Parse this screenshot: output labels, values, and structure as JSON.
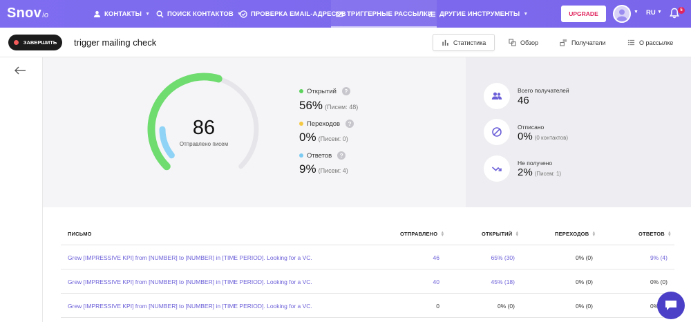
{
  "brand": {
    "name": "Snov",
    "suffix": "io"
  },
  "nav": {
    "items": [
      {
        "label": "КОНТАКТЫ",
        "icon": "user-icon",
        "has_menu": true
      },
      {
        "label": "ПОИСК КОНТАКТОВ",
        "icon": "search-icon",
        "has_menu": true
      },
      {
        "label": "ПРОВЕРКА EMAIL-АДРЕСОВ",
        "icon": "check-circle-icon",
        "has_menu": false
      },
      {
        "label": "ТРИГГЕРНЫЕ РАССЫЛКИ",
        "icon": "mail-icon",
        "has_menu": false,
        "active": true
      },
      {
        "label": "ДРУГИЕ ИНСТРУМЕНТЫ",
        "icon": "menu-icon",
        "has_menu": true
      }
    ],
    "upgrade_label": "UPGRADE",
    "language": "RU",
    "notification_count": "5"
  },
  "campaign": {
    "finish_label": "ЗАВЕРШИТЬ",
    "title": "trigger mailing check",
    "tabs": [
      {
        "label": "Статистика",
        "icon": "bar-chart-icon",
        "active": true
      },
      {
        "label": "Обзор",
        "icon": "overview-icon"
      },
      {
        "label": "Получатели",
        "icon": "recipients-icon"
      },
      {
        "label": "О рассылке",
        "icon": "list-icon"
      }
    ]
  },
  "stats": {
    "sent_count": "86",
    "sent_label": "Отправлено писем",
    "gauge_open_fraction": 0.56,
    "gauge_reply_fraction": 0.09,
    "metrics": [
      {
        "label": "Открытий",
        "value": "56%",
        "detail": "(Писем: 48)",
        "color": "#5cd35c"
      },
      {
        "label": "Переходов",
        "value": "0%",
        "detail": "(Писем: 0)",
        "color": "#f5c842"
      },
      {
        "label": "Ответов",
        "value": "9%",
        "detail": "(Писем: 4)",
        "color": "#7ccbf2"
      }
    ],
    "help_glyph": "?"
  },
  "summary": [
    {
      "label": "Всего получателей",
      "value": "46",
      "detail": "",
      "icon": "users-icon"
    },
    {
      "label": "Отписано",
      "value": "0%",
      "detail": "(0 контактов)",
      "icon": "unsubscribe-icon"
    },
    {
      "label": "Не получено",
      "value": "2%",
      "detail": "(Писем: 1)",
      "icon": "bounce-icon"
    }
  ],
  "table": {
    "headers": {
      "letter": "ПИСЬМО",
      "sent": "ОТПРАВЛЕНО",
      "opened": "ОТКРЫТИЙ",
      "clicks": "ПЕРЕХОДОВ",
      "replies": "ОТВЕТОВ"
    },
    "rows": [
      {
        "letter": "Grew [IMPRESSIVE KPI] from [NUMBER] to [NUMBER] in [TIME PERIOD]. Looking for a VC.",
        "sent": "46",
        "opened": "65% (30)",
        "clicks": "0% (0)",
        "replies": "9% (4)"
      },
      {
        "letter": "Grew [IMPRESSIVE KPI] from [NUMBER] to [NUMBER] in [TIME PERIOD]. Looking for a VC.",
        "sent": "40",
        "opened": "45% (18)",
        "clicks": "0% (0)",
        "replies": "0% (0)"
      },
      {
        "letter": "Grew [IMPRESSIVE KPI] from [NUMBER] to [NUMBER] in [TIME PERIOD]. Looking for a VC.",
        "sent": "0",
        "opened": "0% (0)",
        "clicks": "0% (0)",
        "replies": "0% (0)"
      }
    ]
  },
  "colors": {
    "accent": "#7b68ee",
    "link": "#6b5fd8",
    "upgrade": "#e0245e",
    "chat": "#4a3fc6"
  }
}
